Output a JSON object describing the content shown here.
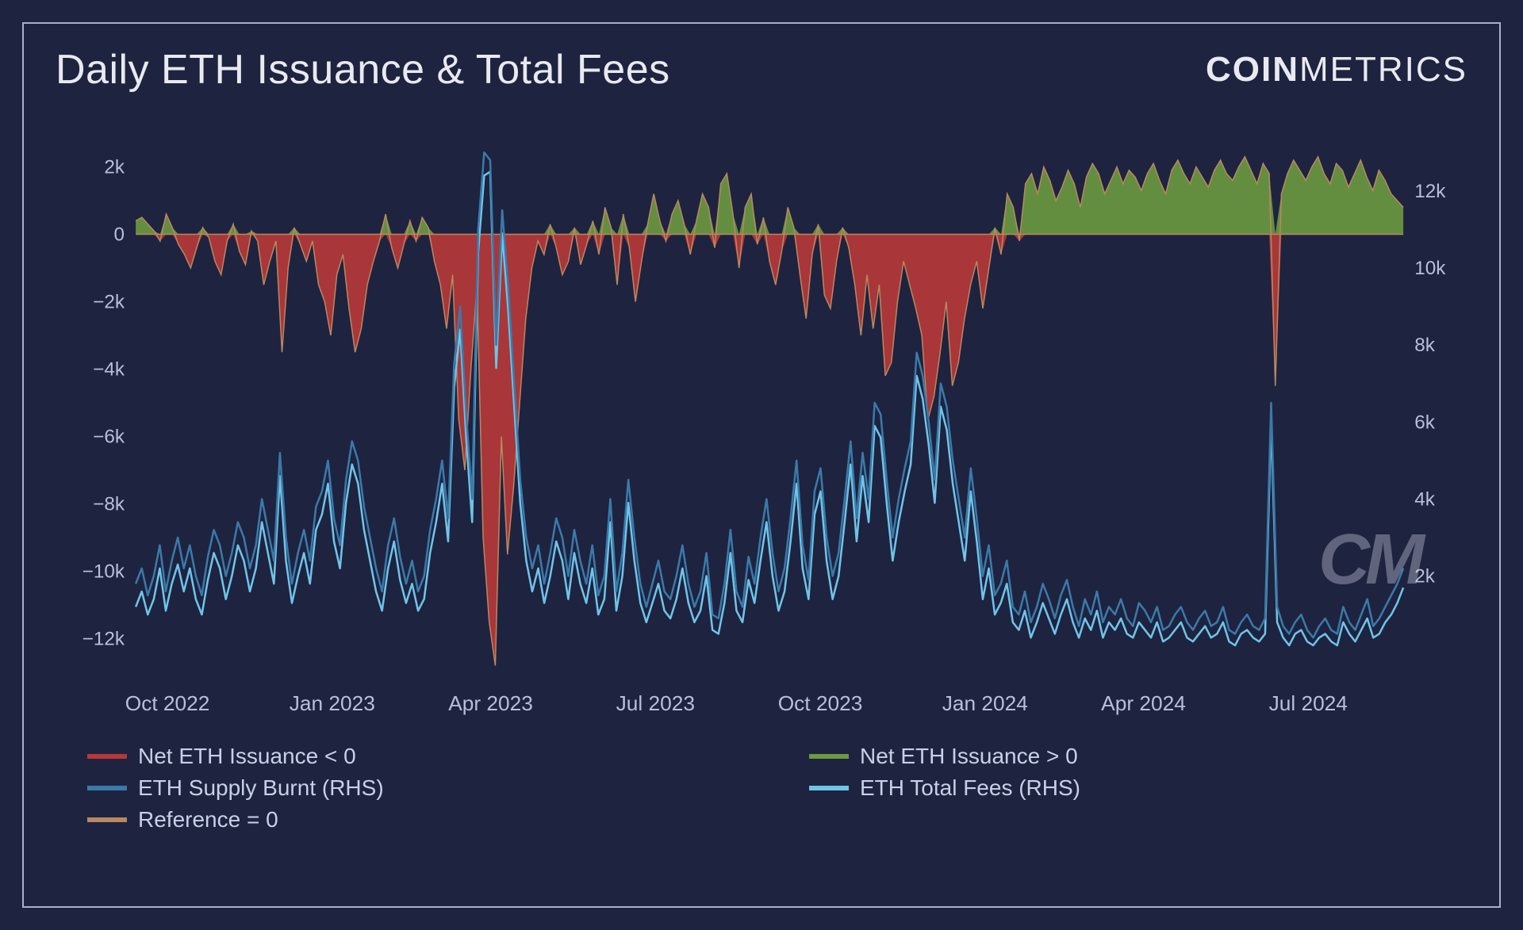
{
  "title": "Daily ETH Issuance & Total Fees",
  "brand": {
    "bold": "COIN",
    "thin": "METRICS"
  },
  "watermark": "CM",
  "chart": {
    "type": "area+line",
    "background_color": "#1e2340",
    "border_color": "#a8b0c8",
    "text_color": "#b8c0d8",
    "left_axis": {
      "min": -13000,
      "max": 3000,
      "ticks": [
        -12000,
        -10000,
        -8000,
        -6000,
        -4000,
        -2000,
        0,
        2000
      ],
      "tick_labels": [
        "−12k",
        "−10k",
        "−8k",
        "−6k",
        "−4k",
        "−2k",
        "0",
        "2k"
      ]
    },
    "right_axis": {
      "min": -500,
      "max": 13500,
      "ticks": [
        2000,
        4000,
        6000,
        8000,
        10000,
        12000
      ],
      "tick_labels": [
        "2k",
        "4k",
        "6k",
        "8k",
        "10k",
        "12k"
      ]
    },
    "x_axis": {
      "labels": [
        "Oct 2022",
        "Jan 2023",
        "Apr 2023",
        "Jul 2023",
        "Oct 2023",
        "Jan 2024",
        "Apr 2024",
        "Jul 2024"
      ],
      "positions": [
        0.025,
        0.155,
        0.28,
        0.41,
        0.54,
        0.67,
        0.795,
        0.925
      ]
    },
    "series": {
      "net_issuance_neg": {
        "color": "#b83838",
        "label": "Net ETH Issuance < 0"
      },
      "net_issuance_pos": {
        "color": "#6b9a3f",
        "label": "Net ETH Issuance > 0"
      },
      "eth_burnt": {
        "color": "#3a7aa8",
        "label": "ETH Supply Burnt (RHS)"
      },
      "eth_fees": {
        "color": "#6fc4e8",
        "label": "ETH Total Fees (RHS)"
      },
      "reference": {
        "color": "#b88860",
        "label": "Reference = 0"
      }
    },
    "data": {
      "issuance": [
        400,
        500,
        300,
        100,
        -200,
        600,
        200,
        -300,
        -600,
        -1000,
        -400,
        200,
        -100,
        -800,
        -1200,
        -200,
        300,
        -500,
        -900,
        100,
        -200,
        -1500,
        -800,
        -200,
        -3500,
        -1000,
        200,
        -300,
        -800,
        -200,
        -1500,
        -2000,
        -3000,
        -1200,
        -600,
        -2200,
        -3500,
        -2800,
        -1500,
        -800,
        -200,
        600,
        -400,
        -1000,
        -300,
        400,
        -200,
        500,
        200,
        -800,
        -1500,
        -2800,
        -1200,
        -5500,
        -7000,
        -4000,
        -1500,
        -9000,
        -11500,
        -12800,
        -6000,
        -9500,
        -7500,
        -5000,
        -2500,
        -1000,
        -200,
        -600,
        300,
        -400,
        -1200,
        -800,
        200,
        -900,
        -300,
        400,
        -600,
        800,
        200,
        -1500,
        600,
        -400,
        -2000,
        -800,
        300,
        1200,
        400,
        -200,
        600,
        1000,
        300,
        -600,
        400,
        1200,
        800,
        -400,
        1500,
        1800,
        600,
        -1000,
        800,
        1200,
        -300,
        500,
        -800,
        -1500,
        -500,
        800,
        200,
        -1200,
        -2500,
        -600,
        300,
        -1800,
        -2200,
        -800,
        200,
        -400,
        -1500,
        -3000,
        -1200,
        -2800,
        -1500,
        -4200,
        -3800,
        -2000,
        -800,
        -1500,
        -2200,
        -3000,
        -5500,
        -4800,
        -3500,
        -2000,
        -4500,
        -3800,
        -2500,
        -1500,
        -800,
        -2200,
        -1000,
        200,
        -600,
        1200,
        800,
        -200,
        1500,
        1800,
        1200,
        2000,
        1600,
        1000,
        1400,
        1900,
        1500,
        800,
        1700,
        2100,
        1800,
        1200,
        1600,
        2000,
        1500,
        1900,
        1700,
        1300,
        1800,
        2100,
        1600,
        1200,
        1900,
        2200,
        1800,
        1500,
        2000,
        1700,
        1400,
        1900,
        2200,
        1800,
        1600,
        2000,
        2300,
        1900,
        1500,
        2100,
        1800,
        -4500,
        1200,
        1800,
        2200,
        1900,
        1600,
        2000,
        2300,
        1800,
        1500,
        2100,
        1900,
        1400,
        1800,
        2200,
        1700,
        1300,
        1900,
        1600,
        1200,
        1000,
        800
      ],
      "burnt": [
        1800,
        2200,
        1500,
        2000,
        2800,
        1600,
        2400,
        3000,
        2200,
        2800,
        2000,
        1500,
        2500,
        3200,
        2800,
        2000,
        2600,
        3400,
        3000,
        2200,
        2800,
        4000,
        3200,
        2400,
        5200,
        3000,
        1800,
        2600,
        3200,
        2400,
        3800,
        4200,
        5000,
        3500,
        2800,
        4500,
        5500,
        5000,
        3800,
        3000,
        2200,
        1600,
        2800,
        3500,
        2500,
        1800,
        2400,
        1600,
        2000,
        3200,
        4000,
        5000,
        3500,
        7500,
        9000,
        6200,
        4000,
        11000,
        13000,
        12800,
        8000,
        11500,
        9500,
        7000,
        4500,
        3000,
        2200,
        2800,
        1800,
        2600,
        3500,
        3000,
        2000,
        3200,
        2400,
        1800,
        2800,
        1500,
        2000,
        4000,
        1600,
        2600,
        4500,
        3000,
        1800,
        1200,
        1800,
        2400,
        1600,
        1400,
        2000,
        2800,
        1800,
        1200,
        1600,
        2600,
        1000,
        900,
        1800,
        3200,
        1600,
        1200,
        2500,
        1800,
        3000,
        4000,
        2600,
        1600,
        2200,
        3500,
        5000,
        2800,
        1900,
        4200,
        4800,
        3000,
        2000,
        2600,
        4000,
        5500,
        3500,
        5200,
        4000,
        6500,
        6200,
        4500,
        3000,
        4000,
        4800,
        5500,
        7800,
        7200,
        6000,
        4500,
        7000,
        6400,
        5000,
        4000,
        3000,
        4800,
        3500,
        2000,
        2800,
        1500,
        1800,
        2400,
        1200,
        1000,
        1600,
        800,
        1200,
        1800,
        1400,
        900,
        1500,
        1900,
        1200,
        700,
        1400,
        1000,
        1600,
        800,
        1200,
        1000,
        1400,
        900,
        700,
        1300,
        1100,
        800,
        1200,
        600,
        700,
        1000,
        1200,
        800,
        600,
        900,
        1100,
        700,
        800,
        1200,
        600,
        500,
        800,
        1000,
        700,
        600,
        900,
        6500,
        1200,
        700,
        500,
        800,
        1000,
        600,
        400,
        700,
        900,
        600,
        500,
        1200,
        800,
        600,
        1000,
        1400,
        700,
        900,
        1200,
        1500,
        1800,
        2200
      ],
      "fees": [
        1200,
        1600,
        1000,
        1400,
        2200,
        1100,
        1800,
        2300,
        1600,
        2200,
        1400,
        1000,
        1900,
        2600,
        2200,
        1400,
        2000,
        2800,
        2400,
        1600,
        2200,
        3400,
        2600,
        1800,
        4600,
        2400,
        1300,
        2000,
        2600,
        1800,
        3200,
        3600,
        4400,
        2900,
        2200,
        3900,
        4900,
        4400,
        3200,
        2400,
        1600,
        1100,
        2200,
        2900,
        1900,
        1300,
        1800,
        1100,
        1400,
        2600,
        3400,
        4400,
        2900,
        6900,
        8400,
        5600,
        3400,
        10400,
        12400,
        12500,
        7400,
        10900,
        8900,
        6400,
        3900,
        2400,
        1600,
        2200,
        1300,
        2000,
        2900,
        2400,
        1400,
        2600,
        1800,
        1300,
        2200,
        1000,
        1400,
        3400,
        1100,
        2000,
        3900,
        2400,
        1300,
        800,
        1300,
        1800,
        1100,
        900,
        1400,
        2200,
        1300,
        800,
        1100,
        2000,
        600,
        500,
        1300,
        2600,
        1100,
        800,
        1900,
        1300,
        2400,
        3400,
        2000,
        1100,
        1600,
        2900,
        4400,
        2200,
        1400,
        3600,
        4200,
        2400,
        1400,
        2000,
        3400,
        4900,
        2900,
        4600,
        3400,
        5900,
        5600,
        3900,
        2400,
        3400,
        4200,
        4900,
        7200,
        6600,
        5400,
        3900,
        6400,
        5800,
        4400,
        3400,
        2400,
        4200,
        2900,
        1400,
        2200,
        1000,
        1300,
        1800,
        800,
        600,
        1100,
        400,
        800,
        1300,
        900,
        500,
        1000,
        1400,
        800,
        400,
        900,
        600,
        1100,
        400,
        800,
        600,
        900,
        500,
        400,
        800,
        600,
        400,
        800,
        300,
        400,
        600,
        800,
        400,
        300,
        500,
        700,
        400,
        500,
        800,
        300,
        200,
        500,
        600,
        400,
        300,
        500,
        6000,
        800,
        400,
        200,
        500,
        600,
        300,
        200,
        400,
        500,
        300,
        200,
        800,
        500,
        300,
        600,
        900,
        400,
        500,
        800,
        1000,
        1300,
        1700
      ]
    }
  },
  "legend": [
    {
      "key": "net_issuance_neg"
    },
    {
      "key": "net_issuance_pos"
    },
    {
      "key": "eth_burnt"
    },
    {
      "key": "eth_fees"
    },
    {
      "key": "reference"
    }
  ]
}
